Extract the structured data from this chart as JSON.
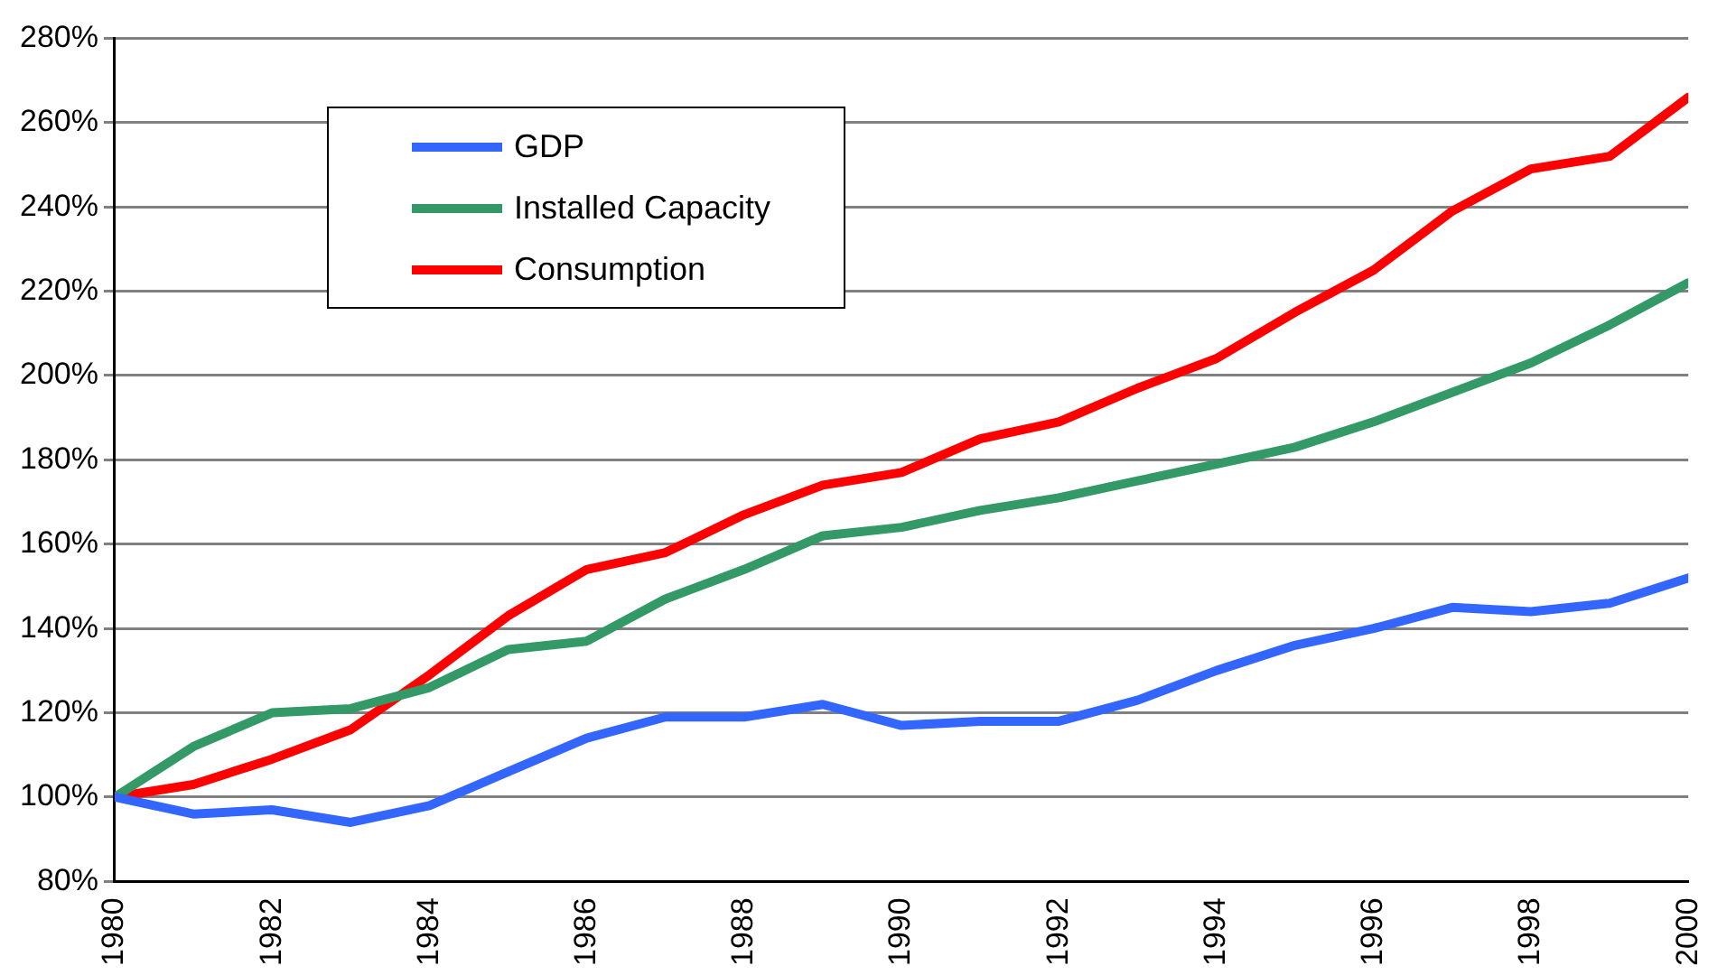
{
  "chart_data": {
    "type": "line",
    "x": [
      1980,
      1981,
      1982,
      1983,
      1984,
      1985,
      1986,
      1987,
      1988,
      1989,
      1990,
      1991,
      1992,
      1993,
      1994,
      1995,
      1996,
      1997,
      1998,
      1999,
      2000
    ],
    "series": [
      {
        "name": "GDP",
        "color": "#3366ff",
        "values": [
          100,
          96,
          97,
          94,
          98,
          106,
          114,
          119,
          119,
          122,
          117,
          118,
          118,
          123,
          130,
          136,
          140,
          145,
          144,
          146,
          152
        ]
      },
      {
        "name": "Installed Capacity",
        "color": "#339966",
        "values": [
          100,
          112,
          120,
          121,
          126,
          135,
          137,
          147,
          154,
          162,
          164,
          168,
          171,
          175,
          179,
          183,
          189,
          196,
          203,
          212,
          222
        ]
      },
      {
        "name": "Consumption",
        "color": "#ff0000",
        "values": [
          100,
          103,
          109,
          116,
          129,
          143,
          154,
          158,
          167,
          174,
          177,
          185,
          189,
          197,
          204,
          215,
          225,
          239,
          249,
          252,
          266
        ]
      }
    ],
    "xlim": [
      1980,
      2000
    ],
    "xticks": [
      1980,
      1982,
      1984,
      1986,
      1988,
      1990,
      1992,
      1994,
      1996,
      1998,
      2000
    ],
    "ylim": [
      80,
      280
    ],
    "yticks": [
      {
        "value": 80,
        "label": "80%"
      },
      {
        "value": 100,
        "label": "100%"
      },
      {
        "value": 120,
        "label": "120%"
      },
      {
        "value": 140,
        "label": "140%"
      },
      {
        "value": 160,
        "label": "160%"
      },
      {
        "value": 180,
        "label": "180%"
      },
      {
        "value": 200,
        "label": "200%"
      },
      {
        "value": 220,
        "label": "220%"
      },
      {
        "value": 240,
        "label": "240%"
      },
      {
        "value": 260,
        "label": "260%"
      },
      {
        "value": 280,
        "label": "280%"
      }
    ],
    "grid": "y",
    "legend": "top left",
    "marker": "none",
    "line_style": "solid"
  }
}
